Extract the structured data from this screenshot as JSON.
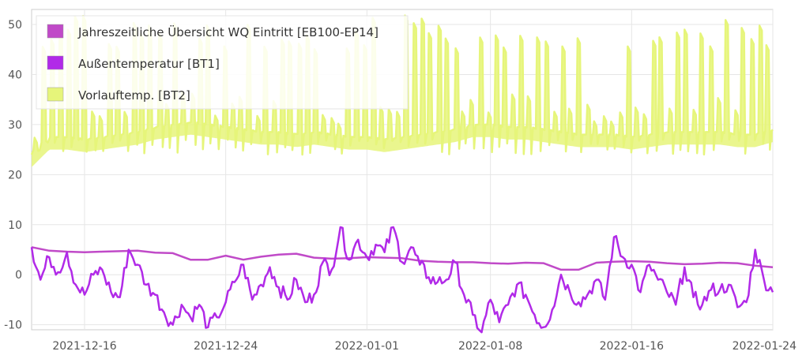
{
  "chart_data": {
    "type": "line",
    "x_axis": {
      "type": "date",
      "range": [
        "2021-12-13",
        "2022-01-24"
      ],
      "tick_labels": [
        "2021-12-16",
        "2021-12-24",
        "2022-01-01",
        "2022-01-08",
        "2022-01-16",
        "2022-01-24"
      ],
      "ticks": [
        "2021-12-16",
        "2021-12-24",
        "2022-01-01",
        "2022-01-08",
        "2022-01-16",
        "2022-01-24"
      ]
    },
    "y_axis": {
      "range": [
        -11,
        53
      ],
      "tick_labels": [
        "-10",
        "0",
        "10",
        "20",
        "30",
        "40",
        "50"
      ],
      "ticks": [
        -10,
        0,
        10,
        20,
        30,
        40,
        50
      ]
    },
    "grid": true,
    "legend_position": "top-left",
    "series": [
      {
        "name": "Jahreszeitliche Übersicht WQ Eintritt [EB100-EP14]",
        "color": "#c04ac8",
        "points": [
          [
            "2021-12-13",
            5.5
          ],
          [
            "2021-12-14",
            4.8
          ],
          [
            "2021-12-15",
            4.6
          ],
          [
            "2021-12-16",
            4.5
          ],
          [
            "2021-12-17",
            4.6
          ],
          [
            "2021-12-18",
            4.7
          ],
          [
            "2021-12-19",
            4.8
          ],
          [
            "2021-12-20",
            4.4
          ],
          [
            "2021-12-21",
            4.3
          ],
          [
            "2021-12-22",
            3.0
          ],
          [
            "2021-12-23",
            3.0
          ],
          [
            "2021-12-24",
            3.8
          ],
          [
            "2021-12-25",
            3.0
          ],
          [
            "2021-12-26",
            3.6
          ],
          [
            "2021-12-27",
            4.0
          ],
          [
            "2021-12-28",
            4.2
          ],
          [
            "2021-12-29",
            3.4
          ],
          [
            "2021-12-30",
            3.2
          ],
          [
            "2021-12-31",
            3.3
          ],
          [
            "2022-01-01",
            3.5
          ],
          [
            "2022-01-02",
            3.4
          ],
          [
            "2022-01-03",
            3.3
          ],
          [
            "2022-01-04",
            2.8
          ],
          [
            "2022-01-05",
            2.6
          ],
          [
            "2022-01-06",
            2.5
          ],
          [
            "2022-01-07",
            2.5
          ],
          [
            "2022-01-08",
            2.3
          ],
          [
            "2022-01-09",
            2.2
          ],
          [
            "2022-01-10",
            2.4
          ],
          [
            "2022-01-11",
            2.3
          ],
          [
            "2022-01-12",
            1.0
          ],
          [
            "2022-01-13",
            1.0
          ],
          [
            "2022-01-14",
            2.4
          ],
          [
            "2022-01-15",
            2.6
          ],
          [
            "2022-01-16",
            2.7
          ],
          [
            "2022-01-17",
            2.6
          ],
          [
            "2022-01-18",
            2.3
          ],
          [
            "2022-01-19",
            2.1
          ],
          [
            "2022-01-20",
            2.2
          ],
          [
            "2022-01-21",
            2.4
          ],
          [
            "2022-01-22",
            2.3
          ],
          [
            "2022-01-23",
            1.8
          ],
          [
            "2022-01-24",
            1.5
          ]
        ]
      },
      {
        "name": "Außentemperatur [BT1]",
        "color": "#b12ae8",
        "points": [
          [
            "2021-12-13",
            5.5
          ],
          [
            "2021-12-13T12",
            -1.0
          ],
          [
            "2021-12-14",
            3.5
          ],
          [
            "2021-12-14T12",
            0.5
          ],
          [
            "2021-12-15",
            4.5
          ],
          [
            "2021-12-15T12",
            -2.0
          ],
          [
            "2021-12-16",
            -4.0
          ],
          [
            "2021-12-16T12",
            0.0
          ],
          [
            "2021-12-17",
            1.0
          ],
          [
            "2021-12-17T12",
            -3.5
          ],
          [
            "2021-12-18",
            -4.5
          ],
          [
            "2021-12-18T12",
            5.0
          ],
          [
            "2021-12-19",
            2.0
          ],
          [
            "2021-12-19T12",
            -2.0
          ],
          [
            "2021-12-20",
            -4.0
          ],
          [
            "2021-12-20T12",
            -7.5
          ],
          [
            "2021-12-21",
            -10.0
          ],
          [
            "2021-12-21T12",
            -6.0
          ],
          [
            "2021-12-22",
            -8.5
          ],
          [
            "2021-12-22T12",
            -6.0
          ],
          [
            "2021-12-23",
            -10.5
          ],
          [
            "2021-12-23T12",
            -8.5
          ],
          [
            "2021-12-24",
            -5.5
          ],
          [
            "2021-12-24T12",
            -1.5
          ],
          [
            "2021-12-25",
            2.0
          ],
          [
            "2021-12-25T12",
            -5.0
          ],
          [
            "2021-12-26",
            -2.0
          ],
          [
            "2021-12-26T12",
            1.5
          ],
          [
            "2021-12-27",
            -2.5
          ],
          [
            "2021-12-27T12",
            -5.0
          ],
          [
            "2021-12-28",
            -1.0
          ],
          [
            "2021-12-28T12",
            -5.5
          ],
          [
            "2021-12-29",
            -4.0
          ],
          [
            "2021-12-29T12",
            2.5
          ],
          [
            "2021-12-30",
            1.0
          ],
          [
            "2021-12-30T12",
            9.5
          ],
          [
            "2021-12-31",
            3.0
          ],
          [
            "2021-12-31T12",
            7.0
          ],
          [
            "2022-01-01",
            3.5
          ],
          [
            "2022-01-01T12",
            6.0
          ],
          [
            "2022-01-02",
            4.5
          ],
          [
            "2022-01-02T12",
            9.5
          ],
          [
            "2022-01-03",
            2.5
          ],
          [
            "2022-01-03T12",
            5.5
          ],
          [
            "2022-01-04",
            2.0
          ],
          [
            "2022-01-04T12",
            -0.5
          ],
          [
            "2022-01-05",
            -1.5
          ],
          [
            "2022-01-05T12",
            -1.0
          ],
          [
            "2022-01-06",
            2.5
          ],
          [
            "2022-01-06T12",
            -4.0
          ],
          [
            "2022-01-07",
            -8.0
          ],
          [
            "2022-01-07T12",
            -11.5
          ],
          [
            "2022-01-08",
            -5.0
          ],
          [
            "2022-01-08T12",
            -9.5
          ],
          [
            "2022-01-09",
            -6.0
          ],
          [
            "2022-01-09T12",
            -2.0
          ],
          [
            "2022-01-10",
            -4.0
          ],
          [
            "2022-01-10T12",
            -8.0
          ],
          [
            "2022-01-11",
            -10.5
          ],
          [
            "2022-01-11T12",
            -7.0
          ],
          [
            "2022-01-12",
            0.0
          ],
          [
            "2022-01-12T12",
            -3.5
          ],
          [
            "2022-01-13",
            -5.5
          ],
          [
            "2022-01-13T12",
            -4.0
          ],
          [
            "2022-01-14",
            -1.0
          ],
          [
            "2022-01-14T12",
            -5.0
          ],
          [
            "2022-01-15",
            7.5
          ],
          [
            "2022-01-15T12",
            3.5
          ],
          [
            "2022-01-16",
            2.0
          ],
          [
            "2022-01-16T12",
            -3.5
          ],
          [
            "2022-01-17",
            2.0
          ],
          [
            "2022-01-17T12",
            -1.0
          ],
          [
            "2022-01-18",
            -3.5
          ],
          [
            "2022-01-18T12",
            -6.0
          ],
          [
            "2022-01-19",
            1.5
          ],
          [
            "2022-01-19T12",
            -4.5
          ],
          [
            "2022-01-20",
            -6.0
          ],
          [
            "2022-01-20T12",
            -3.0
          ],
          [
            "2022-01-21",
            -3.0
          ],
          [
            "2022-01-21T12",
            -2.0
          ],
          [
            "2022-01-22",
            -6.5
          ],
          [
            "2022-01-22T12",
            -5.5
          ],
          [
            "2022-01-23",
            5.0
          ],
          [
            "2022-01-23T12",
            -1.0
          ],
          [
            "2022-01-24",
            -3.5
          ]
        ]
      },
      {
        "name": "Vorlauftemp. [BT2]",
        "color": "#e6f57a",
        "points": [
          [
            "2021-12-13",
            24.0
          ],
          [
            "2021-12-14",
            27.5
          ],
          [
            "2021-12-15",
            27.5
          ],
          [
            "2021-12-16",
            27.0
          ],
          [
            "2021-12-17",
            27.5
          ],
          [
            "2021-12-18",
            28.0
          ],
          [
            "2021-12-19",
            28.5
          ],
          [
            "2021-12-20",
            29.5
          ],
          [
            "2021-12-21",
            30.0
          ],
          [
            "2021-12-22",
            30.5
          ],
          [
            "2021-12-23",
            30.0
          ],
          [
            "2021-12-24",
            29.5
          ],
          [
            "2021-12-25",
            29.0
          ],
          [
            "2021-12-26",
            28.5
          ],
          [
            "2021-12-27",
            28.5
          ],
          [
            "2021-12-28",
            28.0
          ],
          [
            "2021-12-29",
            28.5
          ],
          [
            "2021-12-30",
            28.0
          ],
          [
            "2021-12-31",
            27.5
          ],
          [
            "2022-01-01",
            27.5
          ],
          [
            "2022-01-02",
            27.0
          ],
          [
            "2022-01-03",
            27.5
          ],
          [
            "2022-01-04",
            28.0
          ],
          [
            "2022-01-05",
            28.5
          ],
          [
            "2022-01-06",
            29.0
          ],
          [
            "2022-01-07",
            30.0
          ],
          [
            "2022-01-08",
            30.0
          ],
          [
            "2022-01-09",
            29.5
          ],
          [
            "2022-01-10",
            29.5
          ],
          [
            "2022-01-11",
            29.0
          ],
          [
            "2022-01-12",
            28.5
          ],
          [
            "2022-01-13",
            28.0
          ],
          [
            "2022-01-14",
            28.0
          ],
          [
            "2022-01-15",
            28.0
          ],
          [
            "2022-01-16",
            27.5
          ],
          [
            "2022-01-17",
            28.0
          ],
          [
            "2022-01-18",
            28.5
          ],
          [
            "2022-01-19",
            28.5
          ],
          [
            "2022-01-20",
            28.5
          ],
          [
            "2022-01-21",
            28.5
          ],
          [
            "2022-01-22",
            28.0
          ],
          [
            "2022-01-23",
            28.0
          ],
          [
            "2022-01-24",
            29.0
          ]
        ],
        "spikes": {
          "count_approx": 90,
          "peak_range": [
            45,
            52
          ],
          "low_range": [
            24,
            27
          ]
        }
      }
    ]
  }
}
